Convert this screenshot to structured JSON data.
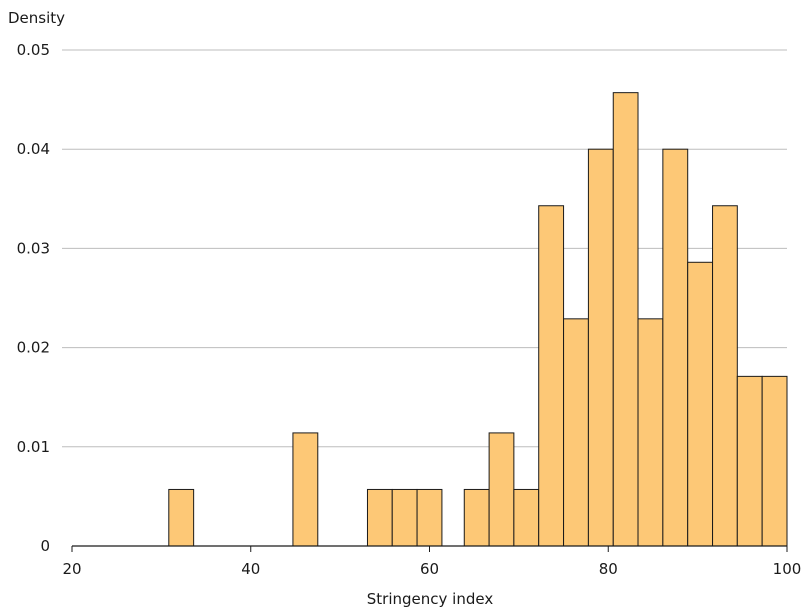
{
  "chart_data": {
    "type": "bar",
    "title": "",
    "ylabel": "Density",
    "xlabel": "Stringency index",
    "xlim": [
      20,
      100
    ],
    "ylim": [
      0,
      0.05
    ],
    "x_ticks": [
      "20",
      "40",
      "60",
      "80",
      "100"
    ],
    "y_ticks": [
      "0",
      "0.01",
      "0.02",
      "0.03",
      "0.04",
      "0.05"
    ],
    "grid": "horizontal",
    "bin_width": 2.778,
    "bins": [
      {
        "x0": 30.83,
        "x1": 33.61,
        "value": 0.0057
      },
      {
        "x0": 44.72,
        "x1": 47.5,
        "value": 0.0114
      },
      {
        "x0": 53.06,
        "x1": 55.83,
        "value": 0.0057
      },
      {
        "x0": 55.83,
        "x1": 58.61,
        "value": 0.0057
      },
      {
        "x0": 58.61,
        "x1": 61.39,
        "value": 0.0057
      },
      {
        "x0": 63.89,
        "x1": 66.67,
        "value": 0.0057
      },
      {
        "x0": 66.67,
        "x1": 69.44,
        "value": 0.0114
      },
      {
        "x0": 69.44,
        "x1": 72.22,
        "value": 0.0057
      },
      {
        "x0": 72.22,
        "x1": 75.0,
        "value": 0.0343
      },
      {
        "x0": 75.0,
        "x1": 77.78,
        "value": 0.0229
      },
      {
        "x0": 77.78,
        "x1": 80.56,
        "value": 0.04
      },
      {
        "x0": 80.56,
        "x1": 83.33,
        "value": 0.0457
      },
      {
        "x0": 83.33,
        "x1": 86.11,
        "value": 0.0229
      },
      {
        "x0": 86.11,
        "x1": 88.89,
        "value": 0.04
      },
      {
        "x0": 88.89,
        "x1": 91.67,
        "value": 0.0286
      },
      {
        "x0": 91.67,
        "x1": 94.44,
        "value": 0.0343
      },
      {
        "x0": 94.44,
        "x1": 97.22,
        "value": 0.0171
      },
      {
        "x0": 97.22,
        "x1": 100.0,
        "value": 0.0171
      }
    ],
    "colors": {
      "bar_fill": "#fdc876",
      "bar_edge": "#1a1a1a",
      "grid": "#bdbdbd"
    }
  }
}
